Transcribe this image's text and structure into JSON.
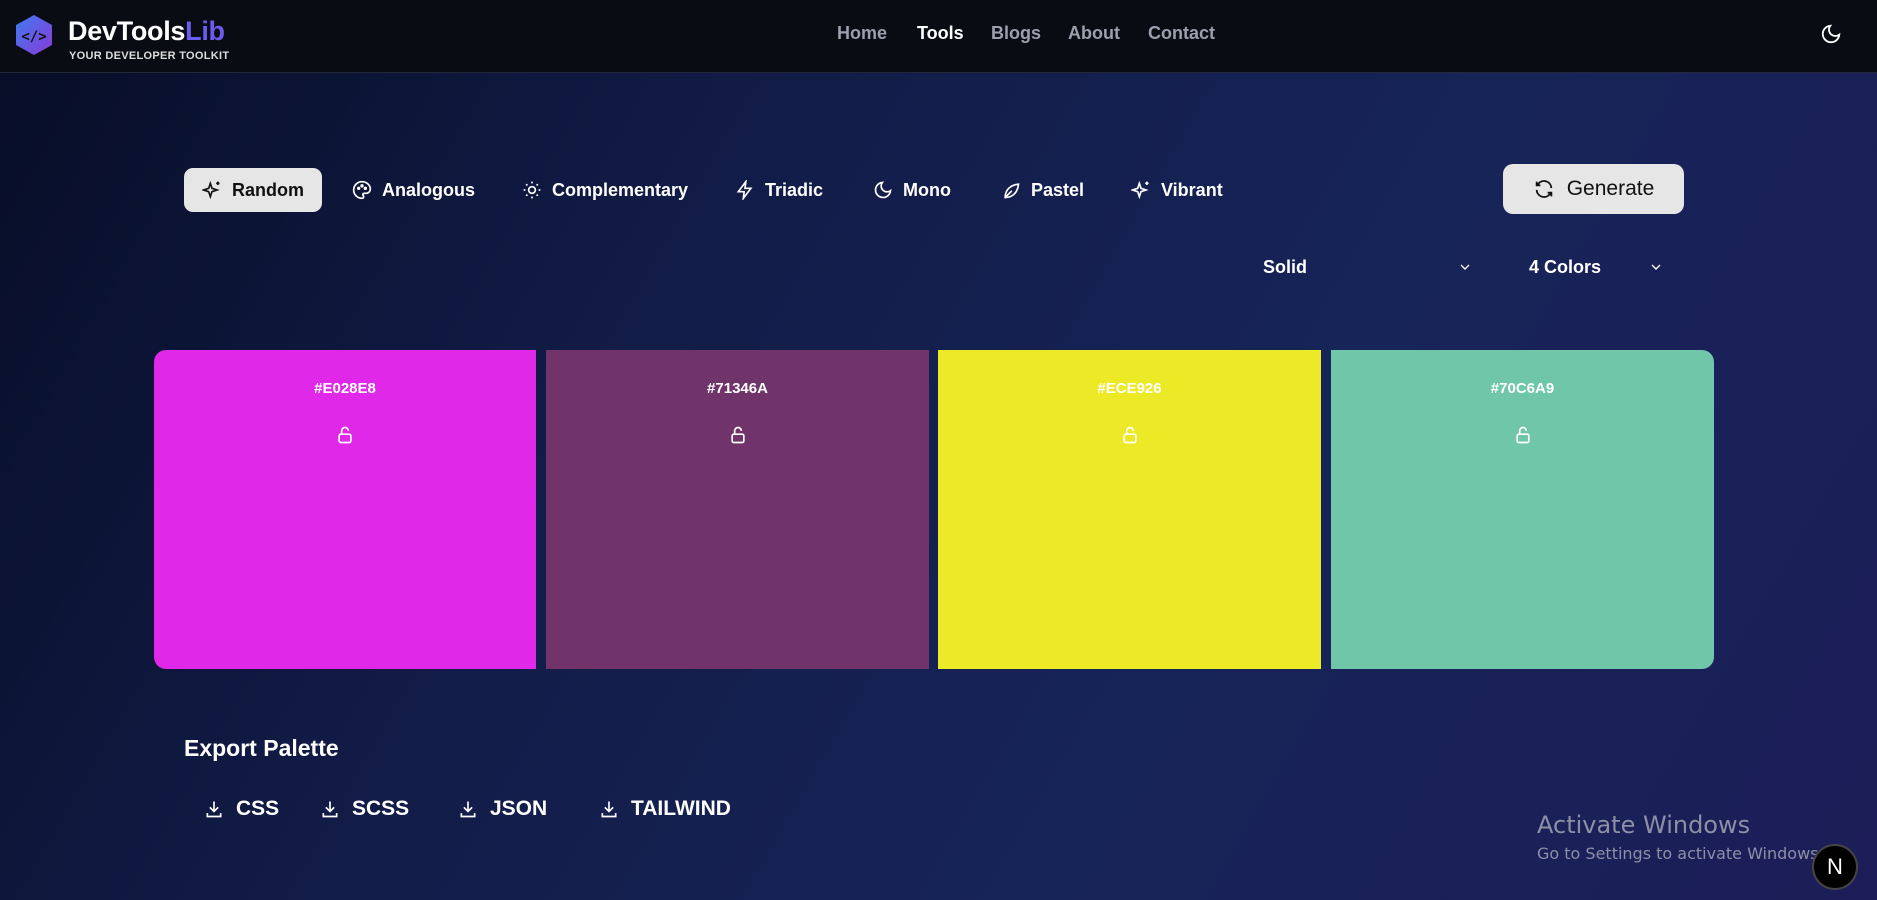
{
  "header": {
    "brand_main": "DevTools",
    "brand_accent": "Lib",
    "tagline": "YOUR DEVELOPER TOOLKIT",
    "nav": [
      {
        "label": "Home",
        "active": false
      },
      {
        "label": "Tools",
        "active": true
      },
      {
        "label": "Blogs",
        "active": false
      },
      {
        "label": "About",
        "active": false
      },
      {
        "label": "Contact",
        "active": false
      }
    ],
    "theme_icon": "moon-icon"
  },
  "modes": [
    {
      "label": "Random",
      "icon": "sparkles-icon",
      "active": true
    },
    {
      "label": "Analogous",
      "icon": "palette-icon"
    },
    {
      "label": "Complementary",
      "icon": "sun-icon"
    },
    {
      "label": "Triadic",
      "icon": "zap-icon"
    },
    {
      "label": "Mono",
      "icon": "moon-icon"
    },
    {
      "label": "Pastel",
      "icon": "leaf-icon"
    },
    {
      "label": "Vibrant",
      "icon": "sparkles-icon"
    }
  ],
  "generate_label": "Generate",
  "style_select": "Solid",
  "count_select": "4 Colors",
  "colors": [
    {
      "hex": "#E028E8",
      "locked": false
    },
    {
      "hex": "#71346A",
      "locked": false
    },
    {
      "hex": "#ECE926",
      "locked": false
    },
    {
      "hex": "#70C6A9",
      "locked": false
    }
  ],
  "export": {
    "title": "Export Palette",
    "formats": [
      "CSS",
      "SCSS",
      "JSON",
      "TAILWIND"
    ]
  },
  "overlay": {
    "activate_title": "Activate Windows",
    "activate_sub": "Go to Settings to activate Windows.",
    "badge": "N"
  }
}
